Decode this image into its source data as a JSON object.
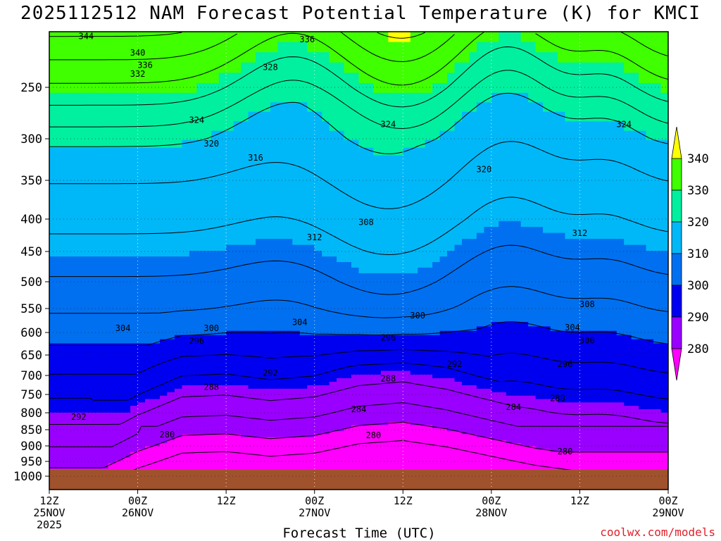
{
  "title": "2025112512 NAM Forecast Potential Temperature (K) for KMCI",
  "credit": "coolwx.com/models",
  "colors": {
    "ground": "#a0522d",
    "contour_line": "#000000",
    "grid": "#999999"
  },
  "chart_data": {
    "type": "heatmap",
    "title": "2025112512 NAM Forecast Potential Temperature (K) for KMCI",
    "xlabel": "Forecast Time (UTC)",
    "ylabel": "",
    "x_ticks": [
      {
        "hour": 0,
        "label1": "12Z",
        "label2": "25NOV",
        "label3": "2025"
      },
      {
        "hour": 12,
        "label1": "00Z",
        "label2": "26NOV",
        "label3": ""
      },
      {
        "hour": 24,
        "label1": "12Z",
        "label2": "",
        "label3": ""
      },
      {
        "hour": 36,
        "label1": "00Z",
        "label2": "27NOV",
        "label3": ""
      },
      {
        "hour": 48,
        "label1": "12Z",
        "label2": "",
        "label3": ""
      },
      {
        "hour": 60,
        "label1": "00Z",
        "label2": "28NOV",
        "label3": ""
      },
      {
        "hour": 72,
        "label1": "12Z",
        "label2": "",
        "label3": ""
      },
      {
        "hour": 84,
        "label1": "00Z",
        "label2": "29NOV",
        "label3": ""
      }
    ],
    "y_ticks": [
      "250",
      "300",
      "350",
      "400",
      "450",
      "500",
      "550",
      "600",
      "650",
      "700",
      "750",
      "800",
      "850",
      "900",
      "950",
      "1000"
    ],
    "y_values": [
      250,
      300,
      350,
      400,
      450,
      500,
      550,
      600,
      650,
      700,
      750,
      800,
      850,
      900,
      950,
      1000
    ],
    "ylim": [
      1000,
      200
    ],
    "xlim": [
      0,
      84
    ],
    "colorbar": {
      "labels": [
        "340",
        "330",
        "320",
        "310",
        "300",
        "290",
        "280"
      ],
      "bins": [
        {
          "from": 270,
          "to": 280,
          "color": "#ff00ff"
        },
        {
          "from": 280,
          "to": 290,
          "color": "#9a00ff"
        },
        {
          "from": 290,
          "to": 300,
          "color": "#0000f0"
        },
        {
          "from": 300,
          "to": 310,
          "color": "#0070f0"
        },
        {
          "from": 310,
          "to": 320,
          "color": "#00b8f8"
        },
        {
          "from": 320,
          "to": 330,
          "color": "#00f0a0"
        },
        {
          "from": 330,
          "to": 340,
          "color": "#40ff00"
        },
        {
          "from": 340,
          "to": 350,
          "color": "#ffff00"
        }
      ],
      "extend": "both"
    },
    "contour_interval": 4,
    "contour_labels": [
      {
        "text": "344",
        "hour": 5,
        "p": 204
      },
      {
        "text": "340",
        "hour": 12,
        "p": 219
      },
      {
        "text": "336",
        "hour": 13,
        "p": 230
      },
      {
        "text": "332",
        "hour": 12,
        "p": 238
      },
      {
        "text": "336",
        "hour": 35,
        "p": 207
      },
      {
        "text": "328",
        "hour": 30,
        "p": 232
      },
      {
        "text": "324",
        "hour": 20,
        "p": 282
      },
      {
        "text": "320",
        "hour": 22,
        "p": 306
      },
      {
        "text": "316",
        "hour": 28,
        "p": 323
      },
      {
        "text": "324",
        "hour": 46,
        "p": 286
      },
      {
        "text": "324",
        "hour": 78,
        "p": 286
      },
      {
        "text": "320",
        "hour": 59,
        "p": 337
      },
      {
        "text": "312",
        "hour": 36,
        "p": 428
      },
      {
        "text": "308",
        "hour": 43,
        "p": 405
      },
      {
        "text": "312",
        "hour": 72,
        "p": 422
      },
      {
        "text": "304",
        "hour": 10,
        "p": 591
      },
      {
        "text": "304",
        "hour": 34,
        "p": 579
      },
      {
        "text": "300",
        "hour": 22,
        "p": 591
      },
      {
        "text": "300",
        "hour": 50,
        "p": 565
      },
      {
        "text": "296",
        "hour": 20,
        "p": 619
      },
      {
        "text": "296",
        "hour": 46,
        "p": 612
      },
      {
        "text": "292",
        "hour": 30,
        "p": 694
      },
      {
        "text": "292",
        "hour": 55,
        "p": 672
      },
      {
        "text": "304",
        "hour": 71,
        "p": 590
      },
      {
        "text": "308",
        "hour": 73,
        "p": 542
      },
      {
        "text": "300",
        "hour": 73,
        "p": 618
      },
      {
        "text": "296",
        "hour": 70,
        "p": 672
      },
      {
        "text": "288",
        "hour": 22,
        "p": 731
      },
      {
        "text": "288",
        "hour": 46,
        "p": 708
      },
      {
        "text": "288",
        "hour": 69,
        "p": 761
      },
      {
        "text": "284",
        "hour": 42,
        "p": 790
      },
      {
        "text": "284",
        "hour": 63,
        "p": 785
      },
      {
        "text": "292",
        "hour": 4,
        "p": 812
      },
      {
        "text": "280",
        "hour": 16,
        "p": 865
      },
      {
        "text": "280",
        "hour": 44,
        "p": 867
      },
      {
        "text": "280",
        "hour": 70,
        "p": 918
      }
    ]
  }
}
